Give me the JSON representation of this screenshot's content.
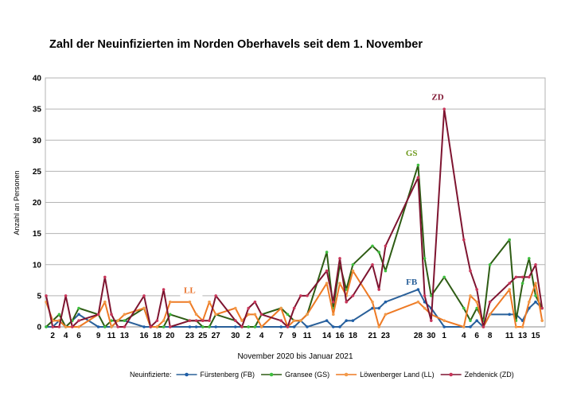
{
  "chart_data": {
    "type": "line",
    "title": "Zahl der Neuinfizierten im Norden Oberhavels seit dem 1. November",
    "xlabel": "November 2020 bis Januar 2021",
    "ylabel": "Anzahl an Personen",
    "ylim": [
      0,
      40
    ],
    "yticks": [
      0,
      5,
      10,
      15,
      20,
      25,
      30,
      35,
      40
    ],
    "xlim": [
      "2020-11-01",
      "2021-01-16"
    ],
    "xtick_dates": [
      "2020-11-02",
      "2020-11-04",
      "2020-11-06",
      "2020-11-09",
      "2020-11-11",
      "2020-11-13",
      "2020-11-16",
      "2020-11-18",
      "2020-11-20",
      "2020-11-23",
      "2020-11-25",
      "2020-11-27",
      "2020-11-30",
      "2020-12-02",
      "2020-12-04",
      "2020-12-07",
      "2020-12-09",
      "2020-12-11",
      "2020-12-14",
      "2020-12-16",
      "2020-12-18",
      "2020-12-21",
      "2020-12-23",
      "2020-12-28",
      "2020-12-30",
      "2021-01-01",
      "2021-01-04",
      "2021-01-06",
      "2021-01-08",
      "2021-01-11",
      "2021-01-13",
      "2021-01-15"
    ],
    "xtick_labels": [
      "2",
      "4",
      "6",
      "9",
      "11",
      "13",
      "16",
      "18",
      "20",
      "23",
      "25",
      "27",
      "30",
      "2",
      "4",
      "7",
      "9",
      "11",
      "14",
      "16",
      "18",
      "21",
      "23",
      "28",
      "30",
      "1",
      "4",
      "6",
      "8",
      "11",
      "13",
      "15"
    ],
    "grid": "horizontal",
    "legend_placement": "bottom",
    "legend_title": "Neuinfizierte:",
    "x": [
      "2020-11-01",
      "2020-11-02",
      "2020-11-03",
      "2020-11-04",
      "2020-11-05",
      "2020-11-06",
      "2020-11-09",
      "2020-11-10",
      "2020-11-11",
      "2020-11-12",
      "2020-11-13",
      "2020-11-16",
      "2020-11-17",
      "2020-11-18",
      "2020-11-19",
      "2020-11-20",
      "2020-11-23",
      "2020-11-24",
      "2020-11-25",
      "2020-11-26",
      "2020-11-27",
      "2020-11-30",
      "2020-12-01",
      "2020-12-02",
      "2020-12-03",
      "2020-12-04",
      "2020-12-07",
      "2020-12-08",
      "2020-12-09",
      "2020-12-10",
      "2020-12-11",
      "2020-12-14",
      "2020-12-15",
      "2020-12-16",
      "2020-12-17",
      "2020-12-18",
      "2020-12-21",
      "2020-12-22",
      "2020-12-23",
      "2020-12-28",
      "2020-12-29",
      "2020-12-30",
      "2021-01-01",
      "2021-01-04",
      "2021-01-05",
      "2021-01-06",
      "2021-01-07",
      "2021-01-08",
      "2021-01-11",
      "2021-01-12",
      "2021-01-13",
      "2021-01-14",
      "2021-01-15",
      "2021-01-16"
    ],
    "series": [
      {
        "name": "Fürstenberg (FB)",
        "label": "FB",
        "color": "#2a6099",
        "marker": "#1f5fa8",
        "label_color": "#2a6099",
        "values": [
          0,
          0,
          1,
          0,
          1,
          2,
          0,
          0,
          0,
          1,
          1,
          0,
          0,
          0,
          0,
          0,
          0,
          0,
          0,
          0,
          0,
          0,
          0,
          0,
          0,
          0,
          0,
          0,
          0,
          1,
          0,
          1,
          0,
          0,
          1,
          1,
          3,
          3,
          4,
          6,
          4,
          3,
          0,
          0,
          0,
          1,
          0,
          2,
          2,
          2,
          1,
          3,
          4,
          3
        ]
      },
      {
        "name": "Gransee (GS)",
        "label": "GS",
        "color": "#2e5c14",
        "marker": "#3fbf3f",
        "label_color": "#6f9a1e",
        "values": [
          0,
          1,
          2,
          0,
          1,
          3,
          2,
          0,
          1,
          1,
          1,
          3,
          0,
          0,
          0,
          2,
          1,
          1,
          0,
          0,
          2,
          1,
          0,
          0,
          0,
          2,
          3,
          2,
          1,
          1,
          2,
          12,
          3,
          10,
          6,
          10,
          13,
          12,
          9,
          26,
          11,
          5,
          8,
          3,
          1,
          3,
          1,
          10,
          14,
          1,
          7,
          11,
          5,
          3
        ]
      },
      {
        "name": "Löwenberger Land (LL)",
        "label": "LL",
        "color": "#ee7a24",
        "marker": "#f29a4a",
        "label_color": "#e8702a",
        "values": [
          4,
          1,
          1,
          0,
          0,
          0,
          2,
          4,
          0,
          1,
          2,
          3,
          0,
          0,
          1,
          4,
          4,
          2,
          1,
          4,
          2,
          3,
          1,
          2,
          2,
          0,
          3,
          0,
          1,
          1,
          2,
          7,
          2,
          7,
          5,
          9,
          4,
          0,
          2,
          4,
          3,
          2,
          1,
          0,
          5,
          4,
          0,
          2,
          6,
          0,
          0,
          4,
          7,
          1
        ]
      },
      {
        "name": "Zehdenick (ZD)",
        "label": "ZD",
        "color": "#7e1430",
        "marker": "#c8365a",
        "label_color": "#7e1430",
        "values": [
          5,
          0,
          0,
          5,
          0,
          1,
          2,
          8,
          2,
          0,
          0,
          5,
          0,
          1,
          6,
          0,
          1,
          1,
          1,
          1,
          5,
          1,
          0,
          3,
          4,
          2,
          1,
          0,
          3,
          5,
          5,
          9,
          4,
          11,
          4,
          5,
          10,
          6,
          13,
          24,
          5,
          1,
          35,
          14,
          9,
          6,
          0,
          4,
          7,
          8,
          8,
          8,
          10,
          3
        ]
      }
    ],
    "annotations": [
      {
        "text": "ZD",
        "date": "2020-12-31",
        "value": 36.5
      },
      {
        "text": "GS",
        "date": "2020-12-27",
        "value": 27.5
      },
      {
        "text": "FB",
        "date": "2020-12-27",
        "value": 6.8
      },
      {
        "text": "LL",
        "date": "2020-11-23",
        "value": 5.4
      }
    ]
  }
}
